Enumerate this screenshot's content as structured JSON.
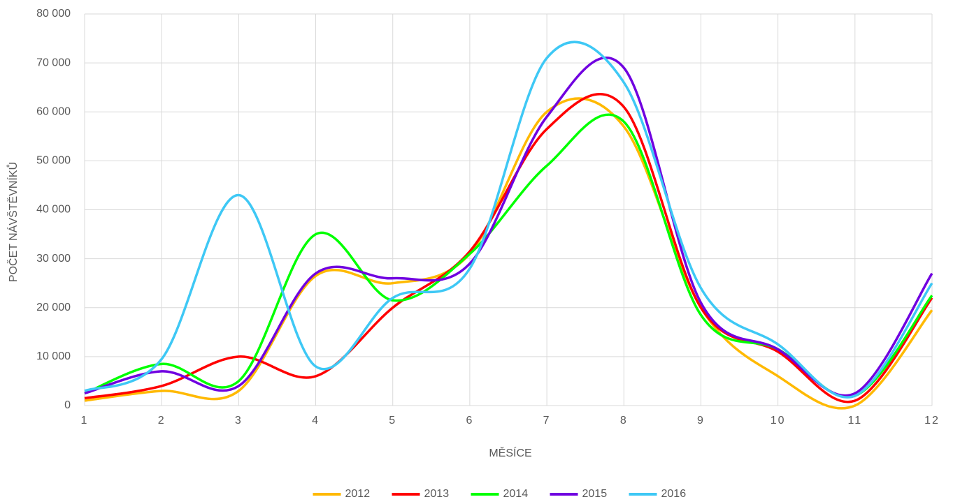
{
  "chart_data": {
    "type": "line",
    "x": [
      1,
      2,
      3,
      4,
      5,
      6,
      7,
      8,
      9,
      10,
      11,
      12
    ],
    "xlabel": "MĚSÍCE",
    "ylabel": "POČET NÁVŠTĚVNÍKŮ",
    "xlim": [
      1,
      12
    ],
    "xticks": [
      1,
      2,
      3,
      4,
      5,
      6,
      7,
      8,
      9,
      10,
      11,
      12
    ],
    "ylim": [
      0,
      80000
    ],
    "yticks": [
      0,
      {
        "value": 10000,
        "label": "10 000"
      },
      {
        "value": 20000,
        "label": "20 000"
      },
      {
        "value": 30000,
        "label": "30 000"
      },
      {
        "value": 40000,
        "label": "40 000"
      },
      {
        "value": 50000,
        "label": "50 000"
      },
      {
        "value": 60000,
        "label": "60 000"
      },
      {
        "value": 70000,
        "label": "70 000"
      },
      {
        "value": 80000,
        "label": "80 000"
      }
    ],
    "grid": true,
    "smooth": true,
    "legend": "bottom",
    "series": [
      {
        "name": "2012",
        "color": "#ffb900",
        "values": [
          1000,
          3000,
          3000,
          26500,
          25000,
          31000,
          60000,
          57000,
          20000,
          6000,
          0,
          19500
        ]
      },
      {
        "name": "2013",
        "color": "#ff0000",
        "values": [
          1500,
          4000,
          10000,
          6000,
          20000,
          31500,
          56500,
          61000,
          20000,
          11000,
          1000,
          22000
        ]
      },
      {
        "name": "2014",
        "color": "#00ff00",
        "values": [
          2500,
          8500,
          5000,
          35000,
          21500,
          31000,
          49000,
          58000,
          18500,
          11500,
          2000,
          22500
        ]
      },
      {
        "name": "2015",
        "color": "#7000e0",
        "values": [
          2500,
          7000,
          4000,
          27000,
          26000,
          29000,
          59000,
          69000,
          21000,
          11500,
          2500,
          27000
        ]
      },
      {
        "name": "2016",
        "color": "#3ec8f5",
        "values": [
          3000,
          9500,
          43000,
          8000,
          22000,
          28000,
          71000,
          66000,
          24000,
          12500,
          2000,
          25000
        ]
      }
    ]
  }
}
